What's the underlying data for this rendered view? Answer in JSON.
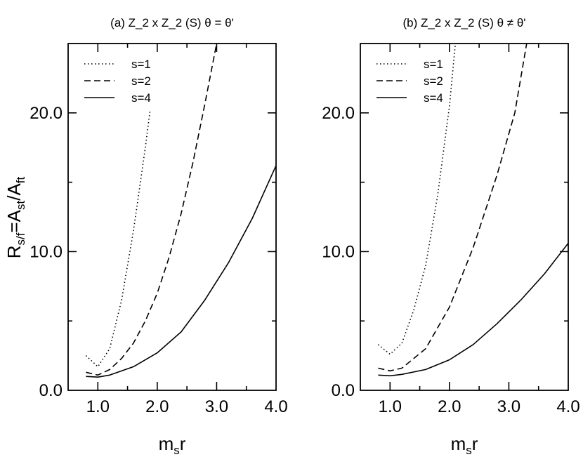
{
  "ylabel": {
    "R": "R",
    "s1": "s/f",
    "eq": "=A",
    "s2": "st",
    "div": "/A",
    "s3": "ft"
  },
  "chart_data": [
    {
      "type": "line",
      "title": "(a) Z_2 x Z_2 (S)  θ = θ'",
      "xlabel": {
        "main": "m",
        "sub": "s",
        "tail": "r"
      },
      "xlim": [
        0.5,
        4.0
      ],
      "ylim": [
        0.0,
        25.0
      ],
      "xticks": [
        1.0,
        2.0,
        3.0,
        4.0
      ],
      "xtick_labels": [
        "1.0",
        "2.0",
        "3.0",
        "4.0"
      ],
      "yticks": [
        0.0,
        10.0,
        20.0
      ],
      "ytick_labels": [
        "0.0",
        "10.0",
        "20.0"
      ],
      "legend": "top-left",
      "series": [
        {
          "name": "s=1",
          "style": "dotted",
          "x": [
            0.8,
            1.0,
            1.2,
            1.4,
            1.6,
            1.8,
            1.88
          ],
          "y": [
            2.5,
            1.7,
            3.0,
            6.5,
            11.5,
            17.5,
            20.2
          ]
        },
        {
          "name": "s=2",
          "style": "dashed",
          "x": [
            0.8,
            1.0,
            1.2,
            1.4,
            1.6,
            1.8,
            2.0,
            2.2,
            2.4,
            2.6,
            2.8,
            3.0
          ],
          "y": [
            1.3,
            1.1,
            1.5,
            2.3,
            3.4,
            5.0,
            7.0,
            9.6,
            12.7,
            16.4,
            20.6,
            25.0
          ]
        },
        {
          "name": "s=4",
          "style": "solid",
          "x": [
            0.8,
            1.0,
            1.2,
            1.6,
            2.0,
            2.4,
            2.8,
            3.2,
            3.6,
            4.0
          ],
          "y": [
            1.0,
            0.95,
            1.1,
            1.7,
            2.7,
            4.2,
            6.5,
            9.2,
            12.4,
            16.2
          ]
        }
      ]
    },
    {
      "type": "line",
      "title": "(b) Z_2 x Z_2 (S)  θ ≠ θ'",
      "xlabel": {
        "main": "m",
        "sub": "s",
        "tail": "r"
      },
      "xlim": [
        0.5,
        4.0
      ],
      "ylim": [
        0.0,
        25.0
      ],
      "xticks": [
        1.0,
        2.0,
        3.0,
        4.0
      ],
      "xtick_labels": [
        "1.0",
        "2.0",
        "3.0",
        "4.0"
      ],
      "yticks": [
        0.0,
        10.0,
        20.0
      ],
      "ytick_labels": [
        "0.0",
        "10.0",
        "20.0"
      ],
      "legend": "top-left",
      "series": [
        {
          "name": "s=1",
          "style": "dotted",
          "x": [
            0.8,
            1.0,
            1.2,
            1.4,
            1.6,
            1.8,
            2.0,
            2.1
          ],
          "y": [
            3.3,
            2.6,
            3.4,
            5.8,
            9.0,
            14.0,
            20.5,
            25.0
          ]
        },
        {
          "name": "s=2",
          "style": "dashed",
          "x": [
            0.8,
            1.0,
            1.2,
            1.6,
            2.0,
            2.4,
            2.8,
            3.1,
            3.3
          ],
          "y": [
            1.6,
            1.4,
            1.6,
            3.0,
            6.0,
            10.3,
            15.5,
            20.0,
            25.0
          ]
        },
        {
          "name": "s=4",
          "style": "solid",
          "x": [
            0.8,
            1.0,
            1.2,
            1.6,
            2.0,
            2.4,
            2.8,
            3.2,
            3.6,
            4.0
          ],
          "y": [
            1.1,
            1.05,
            1.15,
            1.5,
            2.2,
            3.3,
            4.8,
            6.5,
            8.4,
            10.6
          ]
        }
      ]
    }
  ]
}
